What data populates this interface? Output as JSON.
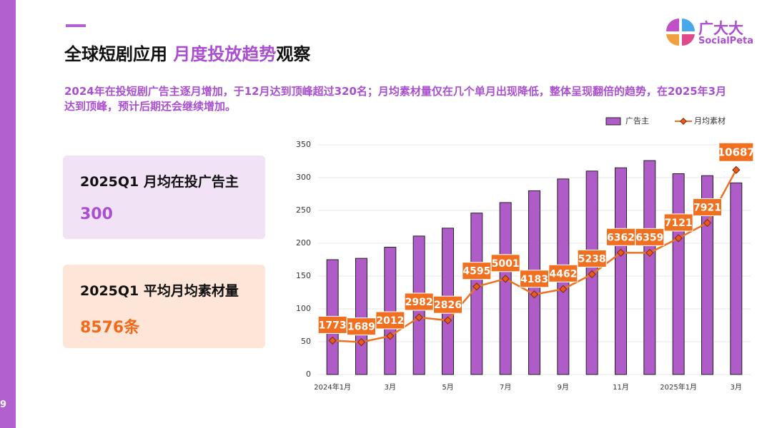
{
  "page_number": "9",
  "header": {
    "title_a": "全球短剧应用",
    "title_b": "月度投放趋势",
    "title_c": "观察",
    "description": "2024年在投短剧广告主逐月增加，于12月达到顶峰超过320名；月均素材量仅在几个单月出现降低，整体呈现翻倍的趋势，在2025年3月达到顶峰，预计后期还会继续增加。"
  },
  "logo": {
    "name": "广大大",
    "sub": "SocialPeta"
  },
  "cards": [
    {
      "label": "2025Q1 月均在投广告主",
      "value": "300"
    },
    {
      "label": "2025Q1 平均月均素材量",
      "value": "8576条"
    }
  ],
  "chart_data": {
    "type": "bar",
    "categories": [
      "2024年1月",
      null,
      "3月",
      null,
      "5月",
      null,
      "7月",
      null,
      "9月",
      null,
      "11月",
      null,
      "2025年1月",
      null,
      "3月"
    ],
    "series": [
      {
        "name": "广告主",
        "color": "#b05cc8",
        "values": [
          175,
          177,
          194,
          211,
          223,
          246,
          262,
          280,
          298,
          310,
          315,
          326,
          306,
          303,
          292
        ]
      },
      {
        "name": "月均素材",
        "color": "#f07020",
        "type": "line",
        "axis": "y2",
        "values": [
          1773,
          1689,
          2012,
          2982,
          2826,
          4595,
          5001,
          4183,
          4462,
          5238,
          6362,
          6359,
          7121,
          7921,
          10687
        ]
      }
    ],
    "ylim": [
      0,
      350
    ],
    "yticks": [
      0,
      50,
      100,
      150,
      200,
      250,
      300,
      350
    ],
    "y2lim": [
      0,
      12000
    ],
    "grid": true
  }
}
